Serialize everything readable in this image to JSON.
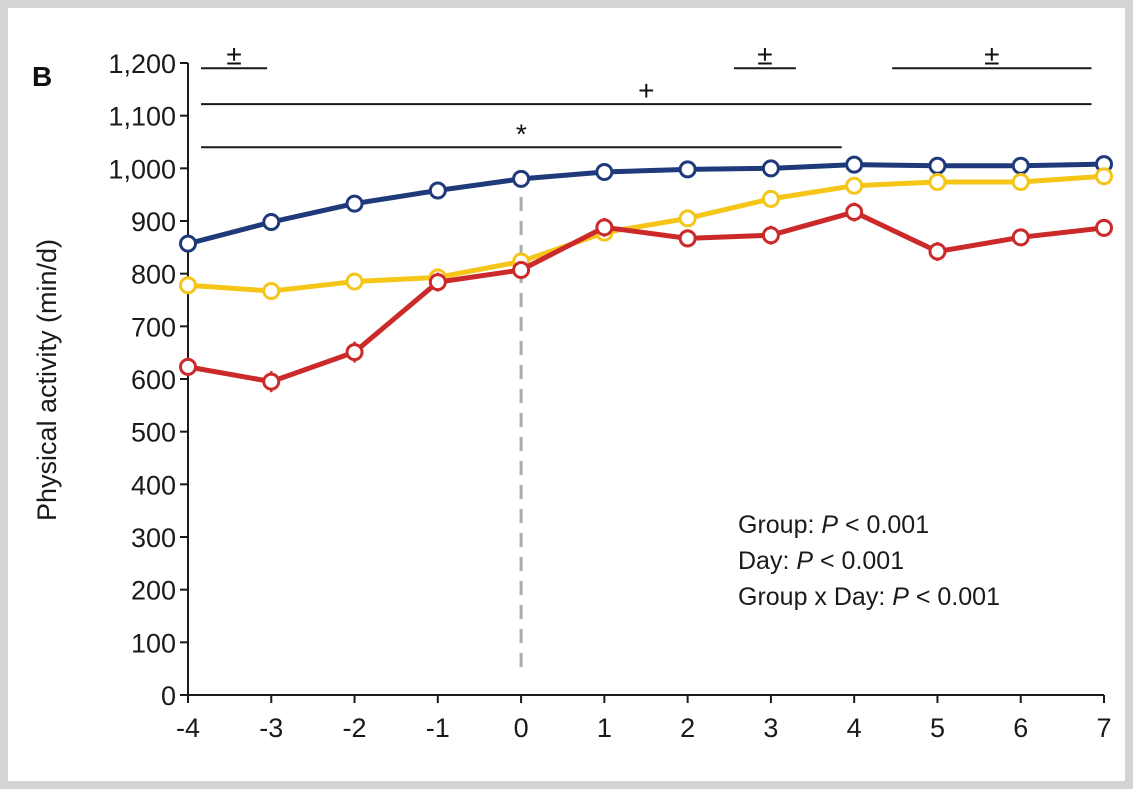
{
  "panel_label": "B",
  "chart_data": {
    "type": "line",
    "title": "",
    "xlabel": "",
    "ylabel": "Physical activity (min/d)",
    "x": [
      -4,
      -3,
      -2,
      -1,
      0,
      1,
      2,
      3,
      4,
      5,
      6,
      7
    ],
    "x_tick_labels": [
      "-4",
      "-3",
      "-2",
      "-1",
      "0",
      "1",
      "2",
      "3",
      "4",
      "5",
      "6",
      "7"
    ],
    "ylim": [
      0,
      1200
    ],
    "y_ticks": [
      0,
      100,
      200,
      300,
      400,
      500,
      600,
      700,
      800,
      900,
      1000,
      1100,
      1200
    ],
    "y_tick_labels": [
      "0",
      "100",
      "200",
      "300",
      "400",
      "500",
      "600",
      "700",
      "800",
      "900",
      "1,000",
      "1,100",
      "1,200"
    ],
    "grid": false,
    "series": [
      {
        "color": "#1f3a7a",
        "values": [
          857,
          898,
          933,
          958,
          980,
          993,
          998,
          1000,
          1007,
          1005,
          1005,
          1008
        ],
        "error": [
          8,
          8,
          8,
          8,
          8,
          8,
          8,
          8,
          8,
          8,
          8,
          8
        ]
      },
      {
        "color": "#f5c518",
        "values": [
          778,
          767,
          785,
          793,
          823,
          878,
          905,
          942,
          967,
          974,
          974,
          985
        ],
        "error": [
          10,
          10,
          10,
          10,
          10,
          10,
          10,
          10,
          10,
          10,
          10,
          10
        ]
      },
      {
        "color": "#cc2a2a",
        "values": [
          623,
          595,
          651,
          784,
          807,
          888,
          867,
          873,
          917,
          842,
          869,
          887
        ],
        "error": [
          18,
          20,
          20,
          18,
          16,
          18,
          17,
          18,
          18,
          18,
          17,
          17
        ]
      }
    ],
    "reference_line": {
      "x": 0,
      "y_from": 0,
      "y_to": 980,
      "color": "#aaaaaa",
      "style": "dashed"
    },
    "significance_bars": [
      {
        "symbol": "±",
        "x_from": -4,
        "x_to": -3.05,
        "y": 1190
      },
      {
        "symbol": "±",
        "x_from": 2.4,
        "x_to": 3.3,
        "y": 1190
      },
      {
        "symbol": "±",
        "x_from": 4.3,
        "x_to": 6.85,
        "y": 1190
      },
      {
        "symbol": "+",
        "x_from": -4,
        "x_to": 6.85,
        "y": 1122
      },
      {
        "symbol": "*",
        "x_from": -4,
        "x_to": 3.85,
        "y": 1040
      }
    ],
    "annotations": [
      {
        "text": "Group: P < 0.001",
        "label": "Group: ",
        "p": "P",
        "rest": " < 0.001"
      },
      {
        "text": "Day: P < 0.001",
        "label": "Day: ",
        "p": "P",
        "rest": " < 0.001"
      },
      {
        "text": "Group x Day: P < 0.001",
        "label": "Group x Day: ",
        "p": "P",
        "rest": " < 0.001"
      }
    ]
  }
}
